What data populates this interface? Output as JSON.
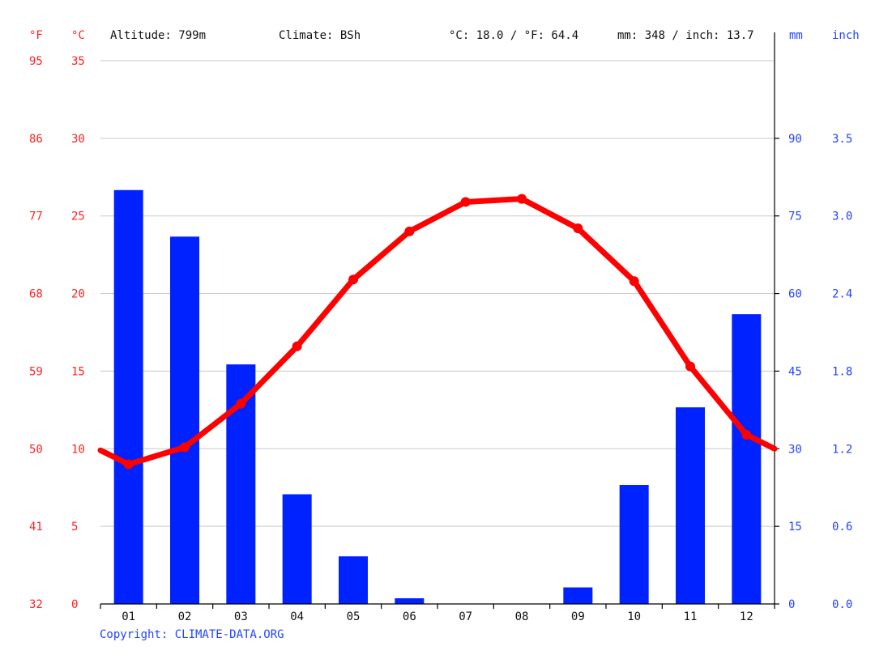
{
  "header": {
    "unit_f": "°F",
    "unit_c": "°C",
    "altitude": "Altitude: 799m",
    "climate": "Climate: BSh",
    "temp_avg": "°C: 18.0 / °F: 64.4",
    "precip_total": "mm: 348 / inch: 13.7",
    "unit_mm": "mm",
    "unit_inch": "inch"
  },
  "copyright": "Copyright: CLIMATE-DATA.ORG",
  "colors": {
    "temperature": "#ff0000",
    "precipitation": "#0022ff",
    "temp_axis": "#ff2222",
    "precip_axis": "#2244ff"
  },
  "chart_data": {
    "type": "bar",
    "categories": [
      "01",
      "02",
      "03",
      "04",
      "05",
      "06",
      "07",
      "08",
      "09",
      "10",
      "11",
      "12"
    ],
    "series": [
      {
        "type": "bar",
        "axis": "right",
        "values": [
          80.0,
          71.0,
          46.3,
          21.2,
          9.2,
          1.1,
          0,
          0,
          3.2,
          23.0,
          38.0,
          56.0
        ]
      },
      {
        "type": "line",
        "axis": "left",
        "values": [
          9.0,
          10.1,
          12.9,
          16.6,
          20.9,
          24.0,
          25.9,
          26.1,
          24.2,
          20.8,
          15.3,
          10.9
        ],
        "edge_start": 9.9,
        "edge_end": 10.0
      }
    ],
    "left_axes": {
      "celsius_ticks": [
        "0",
        "5",
        "10",
        "15",
        "20",
        "25",
        "30",
        "35"
      ],
      "fahrenheit_ticks": [
        "32",
        "41",
        "50",
        "59",
        "68",
        "77",
        "86",
        "95"
      ],
      "ylim": [
        0,
        35
      ]
    },
    "right_axes": {
      "mm_ticks": [
        "0",
        "15",
        "30",
        "45",
        "60",
        "75",
        "90"
      ],
      "inch_ticks": [
        "0.0",
        "0.6",
        "1.2",
        "1.8",
        "2.4",
        "3.0",
        "3.5"
      ],
      "ylim": [
        0,
        105
      ]
    },
    "grid": true
  }
}
